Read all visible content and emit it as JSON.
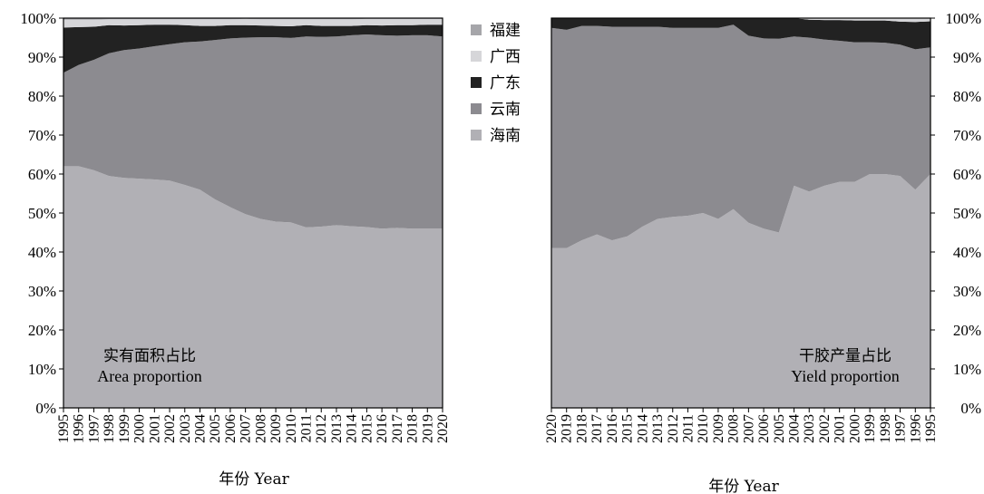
{
  "chart_data": [
    {
      "type": "area",
      "stacked": "percent",
      "title": "实有面积占比",
      "subtitle": "Area proportion",
      "xlabel": "年份 Year",
      "ylabel": "",
      "ylim": [
        0,
        100
      ],
      "yticks": [
        "0%",
        "10%",
        "20%",
        "30%",
        "40%",
        "50%",
        "60%",
        "70%",
        "80%",
        "90%",
        "100%"
      ],
      "y_axis_side": "left",
      "title_placement": "bottom-left",
      "x": [
        "1995",
        "1996",
        "1997",
        "1998",
        "1999",
        "2000",
        "2001",
        "2002",
        "2003",
        "2004",
        "2005",
        "2006",
        "2007",
        "2008",
        "2009",
        "2010",
        "2011",
        "2012",
        "2013",
        "2014",
        "2015",
        "2016",
        "2017",
        "2018",
        "2019",
        "2020"
      ],
      "series": [
        {
          "name": "海南",
          "color": "#b1b0b5",
          "values": [
            62,
            62,
            61,
            59.5,
            59,
            58.8,
            58.6,
            58.3,
            57.2,
            56,
            53.5,
            51.5,
            49.7,
            48.5,
            47.8,
            47.6,
            46.3,
            46.5,
            46.9,
            46.6,
            46.4,
            46,
            46.2,
            46,
            46,
            46
          ]
        },
        {
          "name": "云南",
          "color": "#8c8b90",
          "values": [
            24,
            26,
            28.3,
            31.5,
            32.8,
            33.4,
            34.2,
            35,
            36.6,
            38,
            40.9,
            43.3,
            45.3,
            46.6,
            47.3,
            47.3,
            49,
            48.7,
            48.4,
            49,
            49.4,
            49.6,
            49.3,
            49.6,
            49.6,
            49.3
          ]
        },
        {
          "name": "广东",
          "color": "#222222",
          "values": [
            11.6,
            9.7,
            8.5,
            7.2,
            6.3,
            6,
            5.5,
            5,
            4.4,
            4,
            3.6,
            3.4,
            3.2,
            3,
            2.9,
            3,
            2.9,
            2.8,
            2.7,
            2.4,
            2.4,
            2.5,
            2.7,
            2.6,
            2.7,
            3
          ]
        },
        {
          "name": "广西",
          "color": "#d6d6d9",
          "values": [
            2,
            1.9,
            1.8,
            1.5,
            1.6,
            1.5,
            1.4,
            1.4,
            1.5,
            1.7,
            1.7,
            1.5,
            1.6,
            1.6,
            1.7,
            1.8,
            1.5,
            1.7,
            1.7,
            1.7,
            1.6,
            1.7,
            1.6,
            1.6,
            1.5,
            1.5
          ]
        },
        {
          "name": "福建",
          "color": "#a6a6aa",
          "values": [
            0.4,
            0.4,
            0.4,
            0.3,
            0.3,
            0.3,
            0.3,
            0.3,
            0.3,
            0.3,
            0.3,
            0.3,
            0.2,
            0.3,
            0.3,
            0.3,
            0.3,
            0.3,
            0.3,
            0.3,
            0.2,
            0.2,
            0.2,
            0.2,
            0.2,
            0.2
          ]
        }
      ]
    },
    {
      "type": "area",
      "stacked": "percent",
      "title": "干胶产量占比",
      "subtitle": "Yield proportion",
      "xlabel": "年份 Year",
      "ylabel": "",
      "ylim": [
        0,
        100
      ],
      "yticks": [
        "0%",
        "10%",
        "20%",
        "30%",
        "40%",
        "50%",
        "60%",
        "70%",
        "80%",
        "90%",
        "100%"
      ],
      "y_axis_side": "right",
      "title_placement": "bottom-right",
      "x": [
        "2020",
        "2019",
        "2018",
        "2017",
        "2016",
        "2015",
        "2014",
        "2013",
        "2012",
        "2011",
        "2010",
        "2009",
        "2008",
        "2007",
        "2006",
        "2005",
        "2004",
        "2003",
        "2002",
        "2001",
        "2000",
        "1999",
        "1998",
        "1997",
        "1996",
        "1995"
      ],
      "series": [
        {
          "name": "海南",
          "color": "#b1b0b5",
          "values": [
            41,
            41,
            43,
            44.5,
            43,
            44,
            46.5,
            48.5,
            49,
            49.3,
            50,
            48.5,
            51,
            47.5,
            46,
            45,
            57,
            55.5,
            57,
            58,
            58,
            60,
            60,
            59.5,
            56,
            60
          ]
        },
        {
          "name": "云南",
          "color": "#8c8b90",
          "values": [
            56.5,
            56,
            55,
            53.5,
            54.8,
            53.8,
            51.3,
            49.3,
            48.5,
            48.2,
            47.5,
            49,
            47.3,
            48,
            48.8,
            49.7,
            38.3,
            39.5,
            37.5,
            36.2,
            35.8,
            33.8,
            33.7,
            33.7,
            36,
            32.5
          ]
        },
        {
          "name": "广东",
          "color": "#222222",
          "values": [
            2.5,
            2.9,
            2,
            2,
            2.2,
            2.2,
            2.2,
            2.2,
            2.5,
            2.5,
            2.5,
            2.5,
            1.7,
            4.5,
            5.2,
            5.3,
            4.7,
            4.6,
            5,
            5.3,
            5.6,
            5.6,
            5.7,
            5.9,
            7,
            6.7
          ]
        },
        {
          "name": "广西",
          "color": "#d6d6d9",
          "values": [
            0,
            0.1,
            0,
            0,
            0,
            0,
            0,
            0,
            0,
            0,
            0,
            0,
            0,
            0,
            0,
            0,
            0,
            0.4,
            0.5,
            0.5,
            0.6,
            0.6,
            0.6,
            0.9,
            1,
            0.8
          ]
        },
        {
          "name": "福建",
          "color": "#a6a6aa",
          "values": [
            0,
            0,
            0,
            0,
            0,
            0,
            0,
            0,
            0,
            0,
            0,
            0,
            0,
            0,
            0,
            0,
            0,
            0,
            0,
            0,
            0,
            0,
            0,
            0,
            0,
            0
          ]
        }
      ]
    }
  ],
  "legend": {
    "placement": "center",
    "items": [
      {
        "name": "福建",
        "color": "#a6a6aa"
      },
      {
        "name": "广西",
        "color": "#d6d6d9"
      },
      {
        "name": "广东",
        "color": "#222222"
      },
      {
        "name": "云南",
        "color": "#8c8b90"
      },
      {
        "name": "海南",
        "color": "#b1b0b5"
      }
    ]
  }
}
